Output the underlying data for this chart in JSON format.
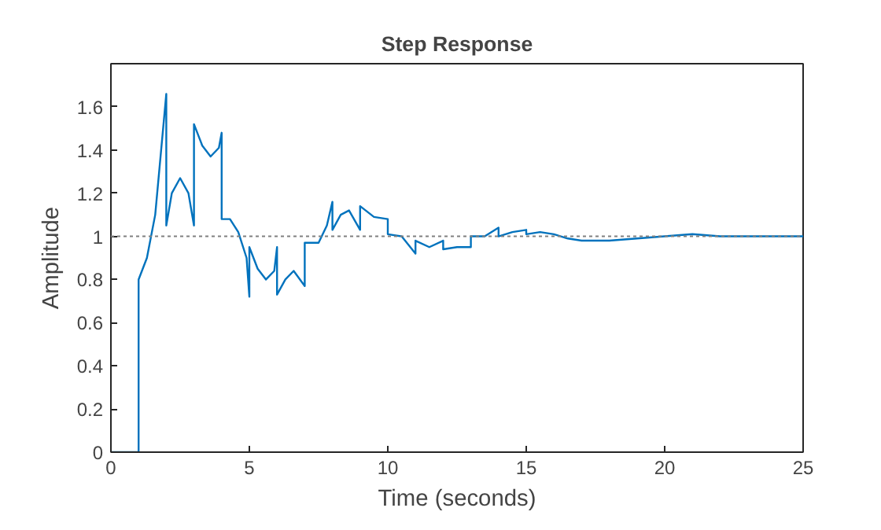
{
  "chart_data": {
    "type": "line",
    "title": "Step Response",
    "xlabel": "Time (seconds)",
    "ylabel": "Amplitude",
    "series": [
      {
        "color": "#0072bd",
        "x": [
          0,
          1,
          1,
          1.3,
          1.6,
          2.0,
          2.0,
          2.2,
          2.5,
          2.8,
          3.0,
          3.0,
          3.3,
          3.6,
          3.9,
          4.0,
          4.0,
          4.3,
          4.6,
          4.9,
          5.0,
          5.0,
          5.3,
          5.6,
          5.9,
          6.0,
          6.0,
          6.3,
          6.6,
          7.0,
          7.0,
          7.5,
          7.8,
          8.0,
          8.0,
          8.3,
          8.6,
          9.0,
          9.0,
          9.5,
          10.0,
          10.0,
          10.5,
          11.0,
          11.0,
          11.5,
          12.0,
          12.0,
          12.5,
          13.0,
          13.0,
          13.5,
          14.0,
          14.0,
          14.5,
          15.0,
          15.0,
          15.5,
          16.0,
          16.5,
          17.0,
          18.0,
          19.0,
          20.0,
          21.0,
          22.0,
          23.0,
          25.0
        ],
        "values": [
          0,
          0,
          0.8,
          0.9,
          1.1,
          1.66,
          1.05,
          1.2,
          1.27,
          1.2,
          1.05,
          1.52,
          1.42,
          1.37,
          1.41,
          1.48,
          1.08,
          1.08,
          1.02,
          0.9,
          0.72,
          0.95,
          0.85,
          0.8,
          0.84,
          0.95,
          0.73,
          0.8,
          0.84,
          0.77,
          0.97,
          0.97,
          1.05,
          1.16,
          1.03,
          1.1,
          1.12,
          1.03,
          1.14,
          1.09,
          1.08,
          1.01,
          1.0,
          0.92,
          0.98,
          0.95,
          0.98,
          0.94,
          0.95,
          0.95,
          1.0,
          1.0,
          1.04,
          1.0,
          1.02,
          1.03,
          1.01,
          1.02,
          1.01,
          0.99,
          0.98,
          0.98,
          0.99,
          1.0,
          1.01,
          1.0,
          1.0,
          1.0
        ]
      }
    ],
    "xlim": [
      0,
      25
    ],
    "ylim": [
      0,
      1.8
    ],
    "xticks": [
      0,
      5,
      10,
      15,
      20,
      25
    ],
    "yticks": [
      0,
      0.2,
      0.4,
      0.6,
      0.8,
      1,
      1.2,
      1.4,
      1.6
    ],
    "ref_lines": [
      {
        "axis": "y",
        "value": 1,
        "color": "#808080",
        "line_style": "dotted"
      }
    ],
    "grid": false
  }
}
